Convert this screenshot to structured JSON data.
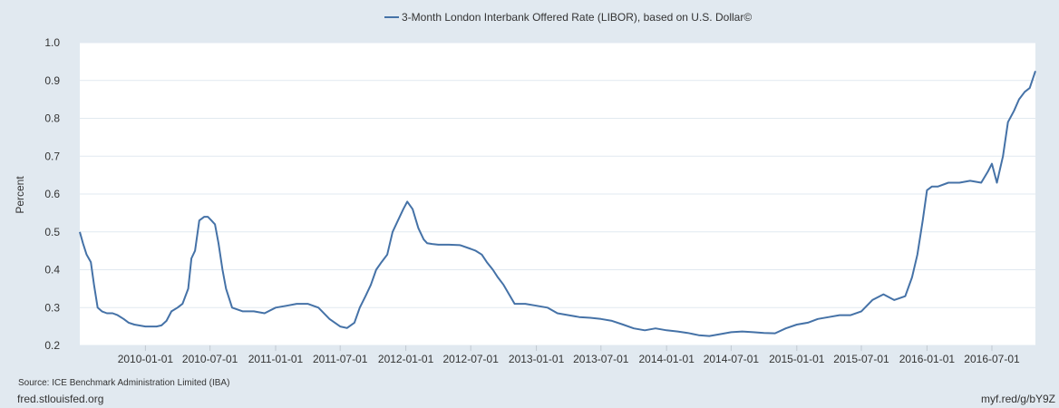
{
  "legend": {
    "label": "3-Month London Interbank Offered Rate (LIBOR), based on U.S. Dollar©"
  },
  "footer": {
    "source": "Source: ICE Benchmark Administration Limited (IBA)",
    "site": "fred.stlouisfed.org",
    "short_url": "myf.red/g/bY9Z"
  },
  "colors": {
    "background": "#e1e9f0",
    "plot_background": "#ffffff",
    "series_line": "#4572a7",
    "grid": "#e1e9f0"
  },
  "chart_data": {
    "type": "line",
    "title": "",
    "xlabel": "",
    "ylabel": "Percent",
    "ylim": [
      0.2,
      1.0
    ],
    "xlim": [
      "2009-07-01",
      "2016-10-31"
    ],
    "yticks": [
      "0.2",
      "0.3",
      "0.4",
      "0.5",
      "0.6",
      "0.7",
      "0.8",
      "0.9",
      "1.0"
    ],
    "xticks": [
      "2010-01-01",
      "2010-07-01",
      "2011-01-01",
      "2011-07-01",
      "2012-01-01",
      "2012-07-01",
      "2013-01-01",
      "2013-07-01",
      "2014-01-01",
      "2014-07-01",
      "2015-01-01",
      "2015-07-01",
      "2016-01-01",
      "2016-07-01"
    ],
    "grid": true,
    "legend_position": "top-center",
    "series": [
      {
        "name": "3-Month London Interbank Offered Rate (LIBOR), based on U.S. Dollar©",
        "x": [
          "2009-07-01",
          "2009-07-10",
          "2009-07-20",
          "2009-08-01",
          "2009-08-10",
          "2009-08-20",
          "2009-09-01",
          "2009-09-15",
          "2009-10-01",
          "2009-10-15",
          "2009-11-01",
          "2009-11-15",
          "2009-12-01",
          "2010-01-01",
          "2010-01-15",
          "2010-02-01",
          "2010-02-15",
          "2010-03-01",
          "2010-03-15",
          "2010-04-01",
          "2010-04-15",
          "2010-05-01",
          "2010-05-10",
          "2010-05-20",
          "2010-06-01",
          "2010-06-15",
          "2010-06-25",
          "2010-07-05",
          "2010-07-15",
          "2010-07-25",
          "2010-08-05",
          "2010-08-15",
          "2010-09-01",
          "2010-10-01",
          "2010-11-01",
          "2010-12-01",
          "2011-01-01",
          "2011-02-01",
          "2011-03-01",
          "2011-04-01",
          "2011-05-01",
          "2011-06-01",
          "2011-07-01",
          "2011-07-20",
          "2011-08-10",
          "2011-08-25",
          "2011-09-10",
          "2011-09-25",
          "2011-10-10",
          "2011-10-25",
          "2011-11-10",
          "2011-11-25",
          "2011-12-10",
          "2011-12-25",
          "2012-01-05",
          "2012-01-20",
          "2012-02-05",
          "2012-02-20",
          "2012-03-01",
          "2012-03-15",
          "2012-04-01",
          "2012-05-01",
          "2012-06-01",
          "2012-07-01",
          "2012-07-15",
          "2012-08-01",
          "2012-08-15",
          "2012-09-01",
          "2012-09-15",
          "2012-10-01",
          "2012-11-01",
          "2012-12-01",
          "2013-01-01",
          "2013-02-01",
          "2013-03-01",
          "2013-04-01",
          "2013-05-01",
          "2013-06-01",
          "2013-07-01",
          "2013-08-01",
          "2013-09-01",
          "2013-10-01",
          "2013-11-01",
          "2013-12-01",
          "2014-01-01",
          "2014-02-01",
          "2014-03-01",
          "2014-04-01",
          "2014-05-01",
          "2014-06-01",
          "2014-07-01",
          "2014-08-01",
          "2014-09-01",
          "2014-10-01",
          "2014-11-01",
          "2014-12-01",
          "2015-01-01",
          "2015-02-01",
          "2015-03-01",
          "2015-04-01",
          "2015-05-01",
          "2015-06-01",
          "2015-07-01",
          "2015-08-01",
          "2015-09-01",
          "2015-10-01",
          "2015-11-01",
          "2015-11-20",
          "2015-12-05",
          "2015-12-20",
          "2016-01-01",
          "2016-01-15",
          "2016-02-01",
          "2016-03-01",
          "2016-04-01",
          "2016-05-01",
          "2016-06-01",
          "2016-06-20",
          "2016-07-01",
          "2016-07-15",
          "2016-08-01",
          "2016-08-15",
          "2016-09-01",
          "2016-09-15",
          "2016-10-01",
          "2016-10-15",
          "2016-10-31"
        ],
        "values": [
          0.5,
          0.47,
          0.44,
          0.42,
          0.36,
          0.3,
          0.29,
          0.285,
          0.285,
          0.28,
          0.27,
          0.26,
          0.255,
          0.25,
          0.25,
          0.25,
          0.253,
          0.265,
          0.29,
          0.3,
          0.31,
          0.35,
          0.43,
          0.45,
          0.53,
          0.54,
          0.54,
          0.53,
          0.52,
          0.47,
          0.4,
          0.35,
          0.3,
          0.29,
          0.29,
          0.285,
          0.3,
          0.305,
          0.31,
          0.31,
          0.3,
          0.27,
          0.25,
          0.246,
          0.26,
          0.3,
          0.33,
          0.36,
          0.4,
          0.42,
          0.44,
          0.5,
          0.53,
          0.56,
          0.58,
          0.56,
          0.51,
          0.48,
          0.47,
          0.468,
          0.466,
          0.466,
          0.465,
          0.455,
          0.45,
          0.44,
          0.42,
          0.4,
          0.38,
          0.36,
          0.31,
          0.31,
          0.305,
          0.3,
          0.285,
          0.28,
          0.275,
          0.273,
          0.27,
          0.265,
          0.255,
          0.245,
          0.24,
          0.245,
          0.24,
          0.237,
          0.233,
          0.227,
          0.225,
          0.23,
          0.235,
          0.237,
          0.235,
          0.233,
          0.232,
          0.245,
          0.255,
          0.26,
          0.27,
          0.275,
          0.28,
          0.28,
          0.29,
          0.32,
          0.335,
          0.32,
          0.33,
          0.38,
          0.44,
          0.53,
          0.61,
          0.62,
          0.62,
          0.63,
          0.63,
          0.635,
          0.63,
          0.66,
          0.68,
          0.63,
          0.7,
          0.79,
          0.82,
          0.85,
          0.87,
          0.88,
          0.925
        ]
      }
    ]
  }
}
